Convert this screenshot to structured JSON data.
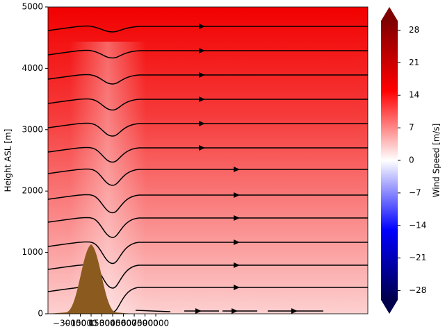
{
  "chart_data": {
    "type": "contour",
    "ylabel": "Height ASL [m]",
    "colorbar_label": "Wind Speed [m/s]",
    "xlim": [
      -60000,
      385000
    ],
    "xticks": [
      {
        "value": -30000,
        "label": "−30000"
      },
      {
        "value": -15000,
        "label": "−15000"
      },
      0,
      15000,
      30000,
      45000,
      60000,
      75000,
      90000
    ],
    "ylim": [
      0,
      5000
    ],
    "yticks": [
      0,
      1000,
      2000,
      3000,
      4000,
      5000
    ],
    "clim": [
      -30,
      30
    ],
    "cticks": [
      {
        "value": -28,
        "label": "−28"
      },
      {
        "value": -21,
        "label": "−21"
      },
      {
        "value": -14,
        "label": "−14"
      },
      {
        "value": -7,
        "label": "−7"
      },
      0,
      7,
      14,
      21,
      28
    ]
  }
}
